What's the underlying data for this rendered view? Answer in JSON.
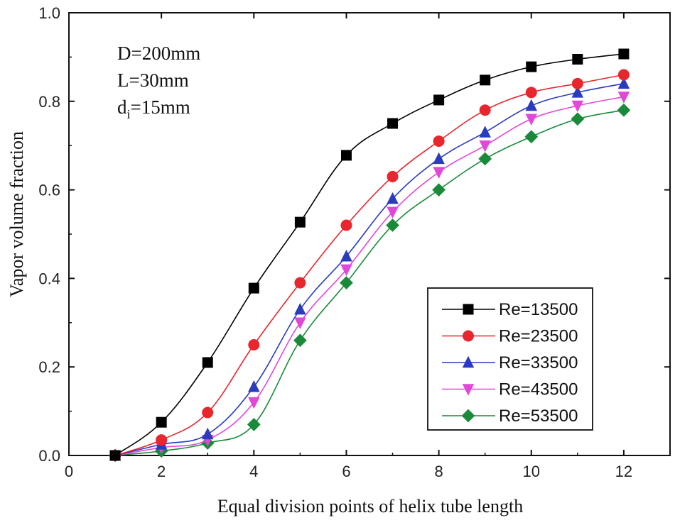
{
  "chart_data": {
    "type": "line",
    "title": "",
    "xlabel": "Equal division points of helix tube length",
    "ylabel": "Vapor volume fraction",
    "xlim": [
      0,
      13
    ],
    "ylim": [
      0.0,
      1.0
    ],
    "x_ticks": [
      0,
      2,
      4,
      6,
      8,
      10,
      12
    ],
    "y_ticks": [
      0.0,
      0.2,
      0.4,
      0.6,
      0.8,
      1.0
    ],
    "x_tick_labels": [
      "0",
      "2",
      "4",
      "6",
      "8",
      "10",
      "12"
    ],
    "y_tick_labels": [
      "0.0",
      "0.2",
      "0.4",
      "0.6",
      "0.8",
      "1.0"
    ],
    "grid": false,
    "legend_position": "bottom-right",
    "annotations": [
      {
        "text": "D=200mm"
      },
      {
        "text": "L=30mm"
      },
      {
        "prefix": "d",
        "sub": "i",
        "suffix": "=15mm"
      }
    ],
    "x": [
      1,
      2,
      3,
      4,
      5,
      6,
      7,
      8,
      9,
      10,
      11,
      12
    ],
    "series": [
      {
        "name": "Re=13500",
        "color": "#000000",
        "marker": "square",
        "values": [
          0.0,
          0.075,
          0.21,
          0.378,
          0.527,
          0.678,
          0.75,
          0.803,
          0.848,
          0.878,
          0.895,
          0.907
        ]
      },
      {
        "name": "Re=23500",
        "color": "#e8262d",
        "marker": "circle",
        "values": [
          0.0,
          0.035,
          0.097,
          0.25,
          0.39,
          0.52,
          0.63,
          0.71,
          0.78,
          0.82,
          0.84,
          0.86
        ]
      },
      {
        "name": "Re=33500",
        "color": "#2a3bbd",
        "marker": "triangle-up",
        "values": [
          0.0,
          0.025,
          0.048,
          0.155,
          0.33,
          0.45,
          0.58,
          0.67,
          0.73,
          0.79,
          0.82,
          0.84
        ]
      },
      {
        "name": "Re=43500",
        "color": "#e048d8",
        "marker": "triangle-down",
        "values": [
          0.0,
          0.018,
          0.035,
          0.12,
          0.3,
          0.42,
          0.55,
          0.64,
          0.7,
          0.76,
          0.79,
          0.81
        ]
      },
      {
        "name": "Re=53500",
        "color": "#1a8a3a",
        "marker": "diamond",
        "values": [
          0.0,
          0.01,
          0.028,
          0.07,
          0.26,
          0.39,
          0.52,
          0.6,
          0.67,
          0.72,
          0.76,
          0.78
        ]
      }
    ]
  }
}
